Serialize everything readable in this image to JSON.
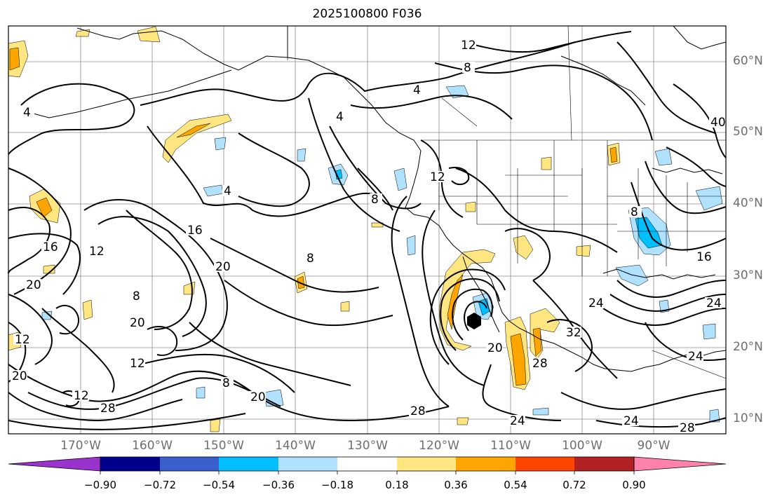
{
  "title": "2025100800 F036",
  "lat_labels": [
    "60°N",
    "50°N",
    "40°N",
    "30°N",
    "20°N",
    "10°N"
  ],
  "lon_labels": [
    "170°W",
    "160°W",
    "150°W",
    "140°W",
    "130°W",
    "120°W",
    "110°W",
    "100°W",
    "90°W"
  ],
  "contour_labels": [
    "4",
    "4",
    "4",
    "4",
    "8",
    "8",
    "8",
    "8",
    "8",
    "8",
    "12",
    "12",
    "12",
    "12",
    "12",
    "12",
    "16",
    "16",
    "16",
    "20",
    "20",
    "20",
    "20",
    "20",
    "20",
    "24",
    "24",
    "24",
    "24",
    "24",
    "28",
    "28",
    "28",
    "28",
    "32",
    "40"
  ],
  "colorbar": {
    "colors": [
      "#9a32cd",
      "#00008b",
      "#3a5fcd",
      "#00bfff",
      "#b0e2ff",
      "#ffffff",
      "#ffe680",
      "#ffa500",
      "#ff4500",
      "#b22222",
      "#ff82ab"
    ],
    "tick_labels": [
      "−0.90",
      "−0.72",
      "−0.54",
      "−0.36",
      "−0.18",
      "0.18",
      "0.36",
      "0.54",
      "0.72",
      "0.90"
    ]
  },
  "shading_colors": {
    "positive_light": "#ffe680",
    "positive_medium": "#ffa500",
    "negative_light": "#b0e2ff",
    "negative_medium": "#00bfff",
    "negative_dark": "#3a5fcd"
  },
  "storm_marker_color": "#000000"
}
